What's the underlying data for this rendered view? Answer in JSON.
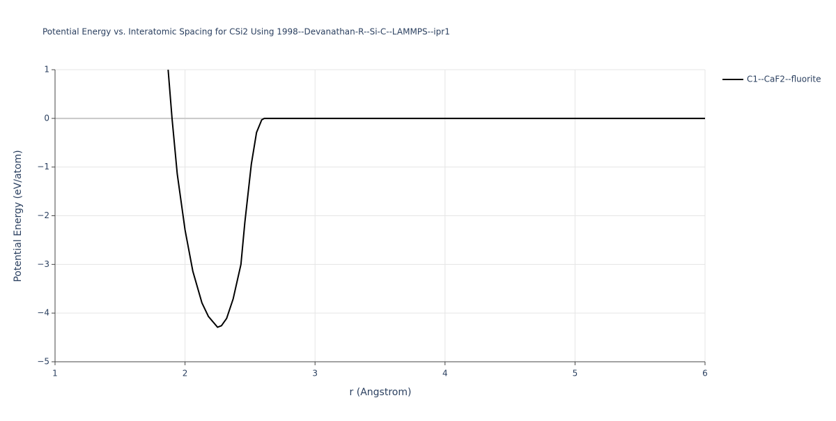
{
  "chart_data": {
    "type": "line",
    "title": "Potential Energy vs. Interatomic Spacing for CSi2 Using 1998--Devanathan-R--Si-C--LAMMPS--ipr1",
    "x_label": "r (Angstrom)",
    "y_label": "Potential Energy (eV/atom)",
    "x": [
      1.87,
      1.9,
      1.94,
      2.0,
      2.06,
      2.13,
      2.18,
      2.25,
      2.28,
      2.32,
      2.37,
      2.43,
      2.46,
      2.51,
      2.55,
      2.59,
      2.61,
      3,
      4,
      5,
      6
    ],
    "series": [
      {
        "name": "C1--CaF2--fluorite",
        "color": "#000000",
        "values": [
          1,
          0,
          -1.14,
          -2.29,
          -3.14,
          -3.79,
          -4.07,
          -4.29,
          -4.26,
          -4.11,
          -3.71,
          -3.0,
          -2.14,
          -0.94,
          -0.29,
          -0.03,
          0,
          0,
          0,
          0,
          0
        ]
      }
    ],
    "xlim": [
      1,
      6
    ],
    "xticks": [
      1,
      2,
      3,
      4,
      5,
      6
    ],
    "ylim": [
      -5,
      1
    ],
    "yticks": [
      {
        "value": -5,
        "label": "−5"
      },
      {
        "value": -4,
        "label": "−4"
      },
      {
        "value": -3,
        "label": "−3"
      },
      {
        "value": -2,
        "label": "−2"
      },
      {
        "value": -1,
        "label": "−1"
      },
      0,
      1
    ],
    "grid": true,
    "legend": "top-right"
  }
}
